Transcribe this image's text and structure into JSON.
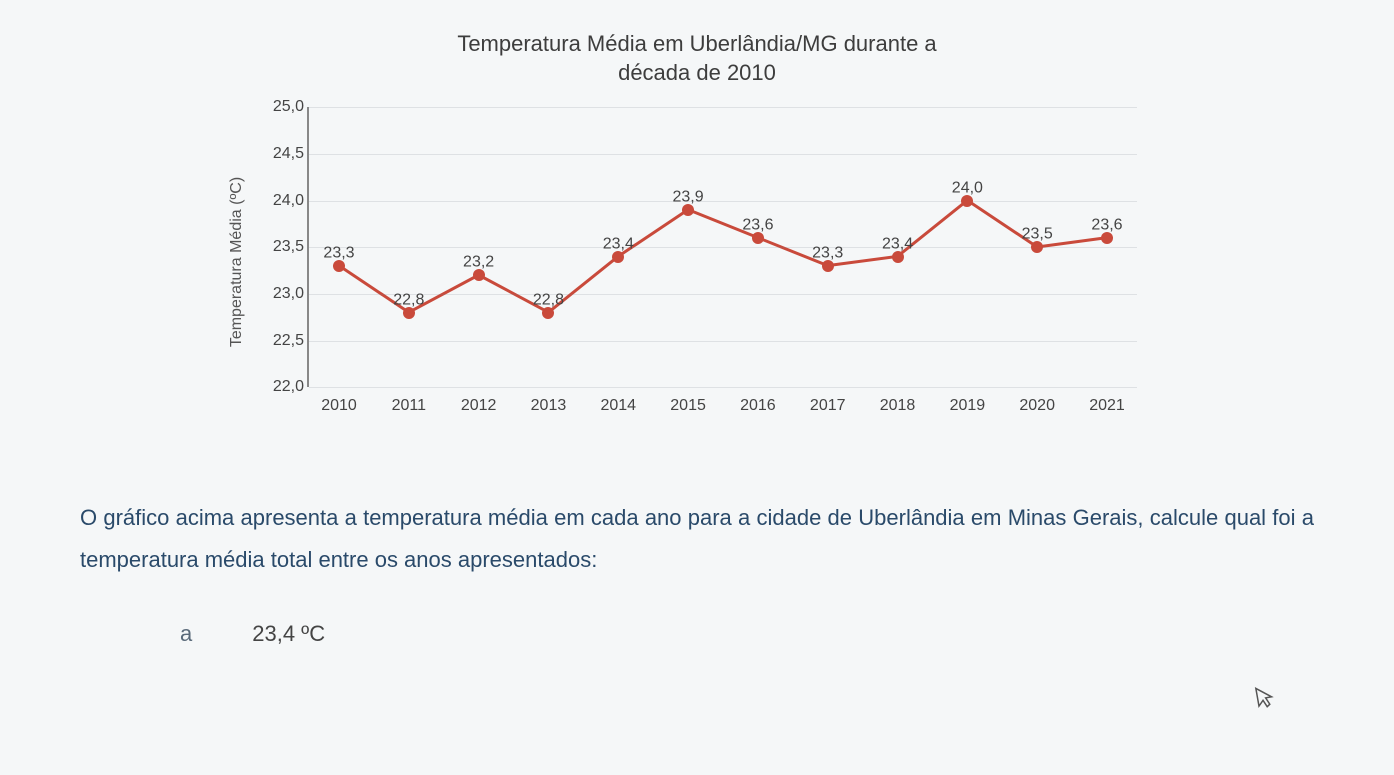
{
  "chart": {
    "type": "line",
    "title_line1": "Temperatura Média em Uberlândia/MG durante a",
    "title_line2": "década de 2010",
    "title_fontsize": 22,
    "y_axis_label": "Temperatura Média (ºC)",
    "ylim": [
      22.0,
      25.0
    ],
    "ytick_step": 0.5,
    "y_ticks": [
      "25,0",
      "24,5",
      "24,0",
      "23,5",
      "23,0",
      "22,5",
      "22,0"
    ],
    "y_tick_values": [
      25.0,
      24.5,
      24.0,
      23.5,
      23.0,
      22.5,
      22.0
    ],
    "x_categories": [
      "2010",
      "2011",
      "2012",
      "2013",
      "2014",
      "2015",
      "2016",
      "2017",
      "2018",
      "2019",
      "2020",
      "2021"
    ],
    "values": [
      23.3,
      22.8,
      23.2,
      22.8,
      23.4,
      23.9,
      23.6,
      23.3,
      23.4,
      24.0,
      23.5,
      23.6
    ],
    "data_labels": [
      "23,3",
      "22,8",
      "23,2",
      "22,8",
      "23,4",
      "23,9",
      "23,6",
      "23,3",
      "23,4",
      "24,0",
      "23,5",
      "23,6"
    ],
    "line_color": "#c94a3b",
    "line_width": 3,
    "marker_color": "#c94a3b",
    "marker_size": 12,
    "grid_color": "rgba(120,130,140,0.18)",
    "background_color": "#f5f7f8",
    "label_fontsize": 16,
    "tick_fontsize": 16
  },
  "question": {
    "text": "O gráfico acima apresenta a temperatura média em cada ano para a cidade de Uberlândia em Minas Gerais, calcule qual foi a temperatura média total entre os anos apresentados:"
  },
  "answer": {
    "letter": "a",
    "text": "23,4 ºC"
  }
}
